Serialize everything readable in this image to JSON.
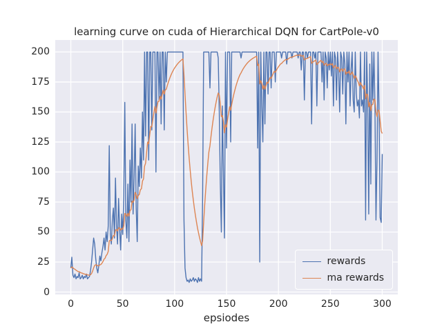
{
  "figure": {
    "background": "#ffffff",
    "axes_background": "#eaeaf2",
    "grid_color": "#ffffff",
    "text_color": "#262626"
  },
  "chart_data": {
    "type": "line",
    "title": "learning curve on cuda of Hierarchical DQN for CartPole-v0",
    "xlabel": "epsiodes",
    "ylabel": "",
    "grid": true,
    "legend_position": "lower right",
    "x_ticks": [
      0,
      50,
      100,
      150,
      200,
      250,
      300
    ],
    "y_ticks": [
      0,
      25,
      50,
      75,
      100,
      125,
      150,
      175,
      200
    ],
    "xlim": [
      -15,
      315
    ],
    "ylim": [
      -2,
      210
    ],
    "x_start": 0,
    "x_step": 1,
    "series": [
      {
        "name": "rewards",
        "color": "#4c72b0",
        "values": [
          20,
          29,
          14,
          12,
          15,
          11,
          13,
          12,
          16,
          11,
          12,
          14,
          11,
          13,
          12,
          15,
          11,
          12,
          13,
          18,
          25,
          35,
          45,
          40,
          28,
          20,
          16,
          22,
          30,
          26,
          33,
          38,
          45,
          35,
          50,
          42,
          55,
          122,
          48,
          40,
          60,
          70,
          45,
          95,
          55,
          40,
          78,
          52,
          35,
          65,
          48,
          80,
          158,
          60,
          45,
          90,
          42,
          110,
          75,
          140,
          65,
          95,
          140,
          70,
          42,
          105,
          88,
          120,
          95,
          150,
          110,
          200,
          130,
          200,
          200,
          110,
          200,
          200,
          135,
          200,
          200,
          200,
          100,
          200,
          200,
          160,
          200,
          140,
          200,
          200,
          135,
          200,
          175,
          200,
          200,
          200,
          200,
          200,
          200,
          200,
          200,
          200,
          200,
          200,
          200,
          200,
          200,
          200,
          200,
          60,
          20,
          12,
          9,
          10,
          8,
          11,
          9,
          10,
          12,
          9,
          11,
          10,
          8,
          12,
          9,
          11,
          9,
          80,
          200,
          200,
          200,
          200,
          200,
          200,
          170,
          200,
          200,
          200,
          200,
          200,
          200,
          200,
          195,
          150,
          90,
          50,
          155,
          100,
          45,
          200,
          120,
          200,
          200,
          200,
          125,
          200,
          200,
          200,
          200,
          200,
          200,
          200,
          200,
          200,
          195,
          200,
          200,
          200,
          200,
          200,
          200,
          200,
          200,
          200,
          200,
          200,
          200,
          200,
          200,
          200,
          120,
          200,
          25,
          200,
          155,
          125,
          200,
          140,
          200,
          200,
          165,
          200,
          200,
          170,
          200,
          200,
          200,
          175,
          200,
          200,
          200,
          200,
          200,
          195,
          200,
          200,
          200,
          200,
          190,
          200,
          200,
          200,
          200,
          195,
          200,
          200,
          200,
          200,
          200,
          195,
          200,
          200,
          185,
          200,
          200,
          160,
          200,
          200,
          195,
          200,
          200,
          200,
          140,
          200,
          200,
          195,
          200,
          155,
          200,
          200,
          200,
          200,
          175,
          200,
          160,
          200,
          195,
          170,
          200,
          185,
          200,
          180,
          200,
          155,
          200,
          195,
          160,
          200,
          185,
          150,
          200,
          195,
          165,
          200,
          190,
          140,
          200,
          175,
          200,
          155,
          185,
          200,
          160,
          150,
          200,
          165,
          155,
          160,
          145,
          200,
          155,
          160,
          150,
          200,
          60,
          200,
          158,
          65,
          190,
          90,
          200,
          160,
          200,
          155,
          60,
          110,
          200,
          150,
          62,
          58,
          115
        ]
      },
      {
        "name": "ma rewards",
        "color": "#dd8452",
        "derived_from": "rewards",
        "method": "exponential_moving_average",
        "alpha": 0.1
      }
    ]
  }
}
